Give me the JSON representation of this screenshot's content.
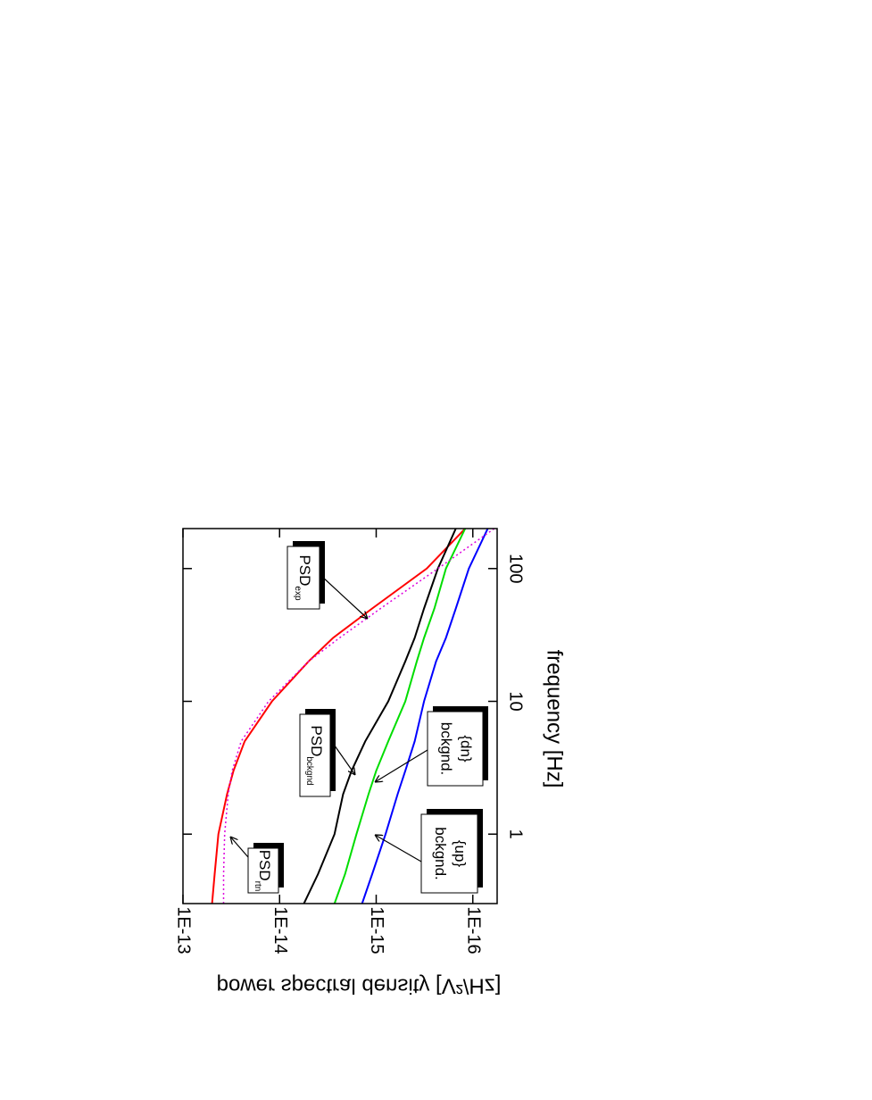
{
  "chart_data": {
    "type": "line",
    "x_label": "frequency [Hz]",
    "y_label": "power spectral density [V²/Hz]",
    "x": [
      0.3,
      0.5,
      1,
      2,
      3,
      5,
      10,
      20,
      30,
      50,
      100,
      200
    ],
    "xlim": [
      0.3,
      200
    ],
    "xticks": [
      1,
      10,
      100
    ],
    "xlog": true,
    "ylim": [
      5.6e-17,
      1e-13
    ],
    "ylog": true,
    "yticks": [
      {
        "value": 1e-13,
        "label": "1E-13"
      },
      {
        "value": 1e-14,
        "label": "1E-14"
      },
      {
        "value": 1e-15,
        "label": "1E-15"
      },
      {
        "value": 1e-16,
        "label": "1E-16"
      }
    ],
    "series": [
      {
        "color": "#ff0000",
        "style": "solid",
        "values": [
          5e-14,
          4.7e-14,
          4.3e-14,
          3.5e-14,
          3e-14,
          2.3e-14,
          1.2e-14,
          5e-15,
          2.8e-15,
          1.1e-15,
          3e-16,
          1.2e-16
        ]
      },
      {
        "color": "#000000",
        "style": "solid",
        "values": [
          5.6e-15,
          4e-15,
          2.7e-15,
          2.2e-15,
          1.8e-15,
          1.3e-15,
          7.5e-16,
          5e-16,
          4e-16,
          3.2e-16,
          2.3e-16,
          1.5e-16
        ]
      },
      {
        "color": "#00dd00",
        "style": "solid",
        "values": [
          2.7e-15,
          2.1e-15,
          1.6e-15,
          1.2e-15,
          1e-15,
          7.5e-16,
          5e-16,
          3.8e-16,
          3.2e-16,
          2.5e-16,
          1.9e-16,
          1.2e-16
        ]
      },
      {
        "color": "#0000ff",
        "style": "solid",
        "values": [
          1.4e-15,
          1.1e-15,
          8e-16,
          6e-16,
          5e-16,
          4e-16,
          3.2e-16,
          2.4e-16,
          1.9e-16,
          1.5e-16,
          1.1e-16,
          7e-17
        ]
      },
      {
        "color": "#dd00dd",
        "style": "dotted",
        "values": [
          3.8e-14,
          3.8e-14,
          3.7e-14,
          3.4e-14,
          3.1e-14,
          2.5e-14,
          1.3e-14,
          5e-15,
          2.4e-15,
          9e-16,
          2.3e-16,
          6e-17
        ]
      }
    ],
    "annotations": [
      {
        "text": "PSD",
        "sub": "rtn"
      },
      {
        "text": "PSD",
        "sub": "exp"
      },
      {
        "text": "PSD",
        "sub": "bckgnd"
      },
      {
        "text": "bckgnd.",
        "line2": "{dn}"
      },
      {
        "text": "bckgnd.",
        "line2": "{up}"
      }
    ]
  }
}
